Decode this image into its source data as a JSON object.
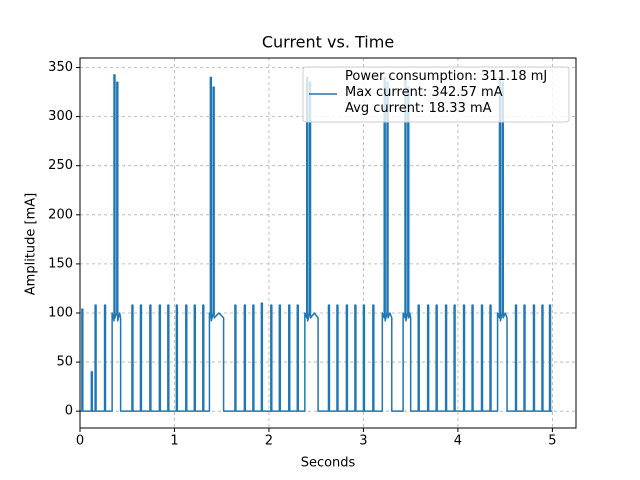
{
  "chart_data": {
    "type": "line",
    "title": "Current vs. Time",
    "xlabel": "Seconds",
    "ylabel": "Amplitude [mA]",
    "xlim": [
      0,
      5.25
    ],
    "ylim": [
      -17.13,
      359.7
    ],
    "xticks": [
      0,
      1,
      2,
      3,
      4,
      5
    ],
    "yticks": [
      0,
      50,
      100,
      150,
      200,
      250,
      300,
      350
    ],
    "grid": true,
    "legend": "upper right",
    "series": [
      {
        "name": "Power consumption: 311.18 mJ\nMax current: 342.57 mA\nAvg current: 18.33 mA",
        "color": "#1f77b4",
        "x": [
          0,
          0.02,
          0.02,
          0.03,
          0.03,
          0.12,
          0.12,
          0.13,
          0.13,
          0.16,
          0.16,
          0.17,
          0.17,
          0.26,
          0.26,
          0.27,
          0.27,
          0.34,
          0.34,
          0.36,
          0.36,
          0.37,
          0.37,
          0.39,
          0.39,
          0.4,
          0.4,
          0.42,
          0.43,
          0.43,
          0.55,
          0.55,
          0.56,
          0.56,
          0.64,
          0.64,
          0.65,
          0.65,
          0.74,
          0.74,
          0.75,
          0.75,
          0.84,
          0.84,
          0.85,
          0.85,
          0.93,
          0.93,
          0.94,
          0.94,
          1.02,
          1.02,
          1.03,
          1.03,
          1.12,
          1.12,
          1.13,
          1.13,
          1.21,
          1.21,
          1.22,
          1.22,
          1.3,
          1.3,
          1.31,
          1.31,
          1.37,
          1.37,
          1.38,
          1.38,
          1.39,
          1.39,
          1.41,
          1.41,
          1.42,
          1.42,
          1.47,
          1.52,
          1.52,
          1.64,
          1.64,
          1.65,
          1.65,
          1.74,
          1.74,
          1.75,
          1.75,
          1.83,
          1.83,
          1.84,
          1.84,
          1.92,
          1.92,
          1.93,
          1.93,
          2.02,
          2.02,
          2.03,
          2.03,
          2.11,
          2.11,
          2.12,
          2.12,
          2.21,
          2.21,
          2.22,
          2.22,
          2.3,
          2.3,
          2.31,
          2.31,
          2.38,
          2.38,
          2.4,
          2.4,
          2.41,
          2.41,
          2.43,
          2.43,
          2.44,
          2.44,
          2.48,
          2.52,
          2.52,
          2.63,
          2.63,
          2.64,
          2.64,
          2.72,
          2.72,
          2.73,
          2.73,
          2.82,
          2.82,
          2.83,
          2.83,
          2.91,
          2.91,
          2.92,
          2.92,
          3.0,
          3.0,
          3.01,
          3.01,
          3.1,
          3.1,
          3.11,
          3.11,
          3.2,
          3.2,
          3.22,
          3.22,
          3.23,
          3.23,
          3.25,
          3.25,
          3.26,
          3.26,
          3.28,
          3.3,
          3.3,
          3.42,
          3.42,
          3.44,
          3.44,
          3.45,
          3.45,
          3.47,
          3.47,
          3.48,
          3.48,
          3.49,
          3.5,
          3.5,
          3.58,
          3.58,
          3.59,
          3.59,
          3.68,
          3.68,
          3.69,
          3.69,
          3.77,
          3.77,
          3.78,
          3.78,
          3.87,
          3.87,
          3.88,
          3.88,
          3.96,
          3.96,
          3.97,
          3.97,
          4.06,
          4.06,
          4.07,
          4.07,
          4.15,
          4.15,
          4.16,
          4.16,
          4.25,
          4.25,
          4.26,
          4.26,
          4.34,
          4.34,
          4.35,
          4.35,
          4.42,
          4.42,
          4.44,
          4.44,
          4.45,
          4.45,
          4.47,
          4.47,
          4.48,
          4.48,
          4.5,
          4.52,
          4.52,
          4.61,
          4.61,
          4.62,
          4.62,
          4.7,
          4.7,
          4.71,
          4.71,
          4.8,
          4.8,
          4.81,
          4.81,
          4.89,
          4.89,
          4.9,
          4.9,
          4.97,
          4.97,
          4.98,
          4.98,
          5.0
        ],
        "values": [
          0,
          0,
          104,
          104,
          0,
          0,
          40,
          40,
          0,
          0,
          108,
          108,
          0,
          0,
          108,
          108,
          0,
          0,
          100,
          92,
          342.57,
          342.57,
          95,
          100,
          335,
          335,
          92,
          100,
          95,
          0,
          0,
          108,
          108,
          0,
          0,
          108,
          108,
          0,
          0,
          108,
          108,
          0,
          0,
          108,
          108,
          0,
          0,
          108,
          108,
          0,
          0,
          108,
          108,
          0,
          0,
          108,
          108,
          0,
          0,
          108,
          108,
          0,
          0,
          108,
          108,
          0,
          0,
          100,
          95,
          340,
          340,
          92,
          100,
          330,
          330,
          95,
          100,
          95,
          0,
          0,
          108,
          108,
          0,
          0,
          108,
          108,
          0,
          0,
          108,
          108,
          0,
          0,
          110,
          110,
          0,
          0,
          108,
          108,
          0,
          0,
          108,
          108,
          0,
          0,
          108,
          108,
          0,
          0,
          108,
          108,
          0,
          0,
          100,
          95,
          340,
          340,
          92,
          100,
          335,
          335,
          95,
          100,
          95,
          0,
          0,
          108,
          108,
          0,
          0,
          108,
          108,
          0,
          0,
          108,
          108,
          0,
          0,
          108,
          108,
          0,
          0,
          108,
          108,
          0,
          0,
          108,
          108,
          0,
          0,
          100,
          95,
          340,
          340,
          92,
          100,
          335,
          335,
          95,
          100,
          95,
          0,
          0,
          100,
          95,
          340,
          340,
          92,
          100,
          330,
          330,
          95,
          100,
          95,
          0,
          0,
          108,
          108,
          0,
          0,
          108,
          108,
          0,
          0,
          108,
          108,
          0,
          0,
          108,
          108,
          0,
          0,
          108,
          108,
          0,
          0,
          108,
          108,
          0,
          0,
          108,
          108,
          0,
          0,
          108,
          108,
          0,
          0,
          108,
          108,
          0,
          0,
          100,
          95,
          340,
          340,
          92,
          100,
          335,
          335,
          95,
          100,
          95,
          0,
          0,
          108,
          108,
          0,
          0,
          108,
          108,
          0,
          0,
          108,
          108,
          0,
          0,
          108,
          108,
          0,
          0,
          108,
          108,
          0,
          0
        ]
      }
    ]
  }
}
